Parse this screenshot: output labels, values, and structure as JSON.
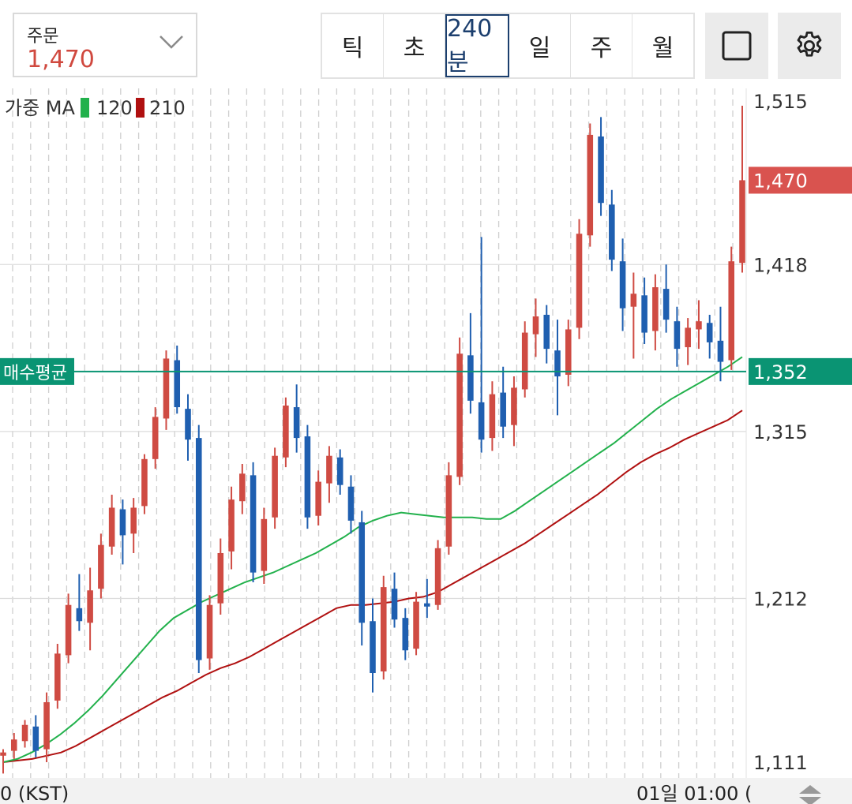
{
  "order": {
    "label": "주문",
    "value": "1,470"
  },
  "periods": [
    {
      "label": "틱",
      "active": false
    },
    {
      "label": "초",
      "active": false
    },
    {
      "label": "240분",
      "active": true
    },
    {
      "label": "일",
      "active": false
    },
    {
      "label": "주",
      "active": false
    },
    {
      "label": "월",
      "active": false
    }
  ],
  "icons": {
    "layout": "square-icon",
    "settings": "gear-icon",
    "scroll": "up-down-arrows-icon"
  },
  "legend": {
    "title": "가중 MA",
    "ma120_label": "120",
    "ma210_label": "210"
  },
  "colors": {
    "up": "#cf4b43",
    "down": "#1f5fb0",
    "ma120": "#22b14c",
    "ma210": "#b01010",
    "avg_line": "#0a9473",
    "current_price": "#d9534f"
  },
  "time_axis": {
    "left_label": "0 (KST)",
    "right_label": "01일 01:00 ("
  },
  "chart_data": {
    "type": "candlestick",
    "y_ticks": [
      1111,
      1212,
      1315,
      1418,
      1515
    ],
    "y_tick_labels": [
      "1,111",
      "1,212",
      "1,315",
      "1,418",
      "1,515"
    ],
    "ylim": [
      1111,
      1515
    ],
    "grid": true,
    "current_price": {
      "label": "1,470",
      "value": 1470
    },
    "avg_buy_price": {
      "tag": "매수평균",
      "label": "1,352",
      "value": 1352
    },
    "ma120": [
      1111,
      1113,
      1117,
      1122,
      1128,
      1135,
      1143,
      1152,
      1162,
      1172,
      1182,
      1192,
      1200,
      1205,
      1210,
      1214,
      1218,
      1222,
      1225,
      1228,
      1232,
      1236,
      1240,
      1245,
      1250,
      1256,
      1260,
      1263,
      1265,
      1264,
      1263,
      1262,
      1262,
      1262,
      1261,
      1261,
      1266,
      1272,
      1278,
      1284,
      1290,
      1296,
      1302,
      1308,
      1315,
      1322,
      1329,
      1335,
      1340,
      1345,
      1350,
      1355,
      1361
    ],
    "ma210": [
      1111,
      1112,
      1113,
      1115,
      1117,
      1121,
      1126,
      1131,
      1136,
      1141,
      1146,
      1151,
      1155,
      1160,
      1165,
      1169,
      1172,
      1176,
      1181,
      1186,
      1191,
      1196,
      1201,
      1206,
      1208,
      1208,
      1209,
      1210,
      1212,
      1213,
      1216,
      1221,
      1226,
      1231,
      1236,
      1241,
      1246,
      1252,
      1258,
      1264,
      1270,
      1276,
      1283,
      1290,
      1296,
      1301,
      1305,
      1310,
      1314,
      1318,
      1322,
      1328
    ],
    "candles": [
      {
        "o": 1115,
        "h": 1119,
        "l": 1104,
        "c": 1117
      },
      {
        "o": 1118,
        "h": 1129,
        "l": 1113,
        "c": 1125
      },
      {
        "o": 1124,
        "h": 1137,
        "l": 1120,
        "c": 1134
      },
      {
        "o": 1133,
        "h": 1140,
        "l": 1114,
        "c": 1118
      },
      {
        "o": 1119,
        "h": 1154,
        "l": 1111,
        "c": 1148
      },
      {
        "o": 1149,
        "h": 1184,
        "l": 1144,
        "c": 1178
      },
      {
        "o": 1177,
        "h": 1215,
        "l": 1172,
        "c": 1208
      },
      {
        "o": 1206,
        "h": 1227,
        "l": 1192,
        "c": 1198
      },
      {
        "o": 1197,
        "h": 1231,
        "l": 1180,
        "c": 1217
      },
      {
        "o": 1218,
        "h": 1252,
        "l": 1212,
        "c": 1245
      },
      {
        "o": 1244,
        "h": 1276,
        "l": 1239,
        "c": 1268
      },
      {
        "o": 1267,
        "h": 1273,
        "l": 1233,
        "c": 1251
      },
      {
        "o": 1252,
        "h": 1274,
        "l": 1240,
        "c": 1268
      },
      {
        "o": 1269,
        "h": 1301,
        "l": 1264,
        "c": 1298
      },
      {
        "o": 1298,
        "h": 1330,
        "l": 1292,
        "c": 1324
      },
      {
        "o": 1323,
        "h": 1365,
        "l": 1316,
        "c": 1360
      },
      {
        "o": 1359,
        "h": 1368,
        "l": 1326,
        "c": 1330
      },
      {
        "o": 1329,
        "h": 1338,
        "l": 1297,
        "c": 1310
      },
      {
        "o": 1311,
        "h": 1319,
        "l": 1166,
        "c": 1174
      },
      {
        "o": 1175,
        "h": 1214,
        "l": 1168,
        "c": 1208
      },
      {
        "o": 1209,
        "h": 1249,
        "l": 1202,
        "c": 1240
      },
      {
        "o": 1241,
        "h": 1281,
        "l": 1230,
        "c": 1273
      },
      {
        "o": 1272,
        "h": 1295,
        "l": 1264,
        "c": 1289
      },
      {
        "o": 1288,
        "h": 1296,
        "l": 1222,
        "c": 1228
      },
      {
        "o": 1229,
        "h": 1268,
        "l": 1221,
        "c": 1261
      },
      {
        "o": 1262,
        "h": 1305,
        "l": 1255,
        "c": 1300
      },
      {
        "o": 1299,
        "h": 1336,
        "l": 1293,
        "c": 1331
      },
      {
        "o": 1330,
        "h": 1344,
        "l": 1302,
        "c": 1311
      },
      {
        "o": 1312,
        "h": 1319,
        "l": 1255,
        "c": 1262
      },
      {
        "o": 1263,
        "h": 1291,
        "l": 1257,
        "c": 1284
      },
      {
        "o": 1283,
        "h": 1306,
        "l": 1271,
        "c": 1300
      },
      {
        "o": 1299,
        "h": 1304,
        "l": 1276,
        "c": 1282
      },
      {
        "o": 1281,
        "h": 1288,
        "l": 1252,
        "c": 1260
      },
      {
        "o": 1259,
        "h": 1266,
        "l": 1183,
        "c": 1197
      },
      {
        "o": 1198,
        "h": 1212,
        "l": 1154,
        "c": 1166
      },
      {
        "o": 1167,
        "h": 1226,
        "l": 1162,
        "c": 1219
      },
      {
        "o": 1218,
        "h": 1228,
        "l": 1194,
        "c": 1199
      },
      {
        "o": 1200,
        "h": 1206,
        "l": 1174,
        "c": 1180
      },
      {
        "o": 1181,
        "h": 1216,
        "l": 1177,
        "c": 1210
      },
      {
        "o": 1209,
        "h": 1224,
        "l": 1200,
        "c": 1207
      },
      {
        "o": 1208,
        "h": 1248,
        "l": 1205,
        "c": 1243
      },
      {
        "o": 1244,
        "h": 1296,
        "l": 1239,
        "c": 1288
      },
      {
        "o": 1287,
        "h": 1373,
        "l": 1282,
        "c": 1363
      },
      {
        "o": 1362,
        "h": 1388,
        "l": 1326,
        "c": 1334
      },
      {
        "o": 1333,
        "h": 1435,
        "l": 1302,
        "c": 1310
      },
      {
        "o": 1311,
        "h": 1346,
        "l": 1303,
        "c": 1338
      },
      {
        "o": 1339,
        "h": 1355,
        "l": 1311,
        "c": 1318
      },
      {
        "o": 1319,
        "h": 1349,
        "l": 1306,
        "c": 1342
      },
      {
        "o": 1341,
        "h": 1383,
        "l": 1336,
        "c": 1376
      },
      {
        "o": 1375,
        "h": 1397,
        "l": 1361,
        "c": 1386
      },
      {
        "o": 1387,
        "h": 1393,
        "l": 1357,
        "c": 1366
      },
      {
        "o": 1365,
        "h": 1384,
        "l": 1325,
        "c": 1349
      },
      {
        "o": 1350,
        "h": 1384,
        "l": 1343,
        "c": 1378
      },
      {
        "o": 1379,
        "h": 1446,
        "l": 1372,
        "c": 1437
      },
      {
        "o": 1436,
        "h": 1505,
        "l": 1429,
        "c": 1498
      },
      {
        "o": 1497,
        "h": 1509,
        "l": 1448,
        "c": 1456
      },
      {
        "o": 1455,
        "h": 1464,
        "l": 1414,
        "c": 1421
      },
      {
        "o": 1420,
        "h": 1434,
        "l": 1377,
        "c": 1391
      },
      {
        "o": 1392,
        "h": 1413,
        "l": 1360,
        "c": 1400
      },
      {
        "o": 1399,
        "h": 1410,
        "l": 1369,
        "c": 1376
      },
      {
        "o": 1377,
        "h": 1412,
        "l": 1365,
        "c": 1404
      },
      {
        "o": 1403,
        "h": 1418,
        "l": 1376,
        "c": 1384
      },
      {
        "o": 1383,
        "h": 1392,
        "l": 1355,
        "c": 1366
      },
      {
        "o": 1367,
        "h": 1385,
        "l": 1356,
        "c": 1379
      },
      {
        "o": 1378,
        "h": 1396,
        "l": 1366,
        "c": 1383
      },
      {
        "o": 1382,
        "h": 1387,
        "l": 1360,
        "c": 1370
      },
      {
        "o": 1371,
        "h": 1392,
        "l": 1346,
        "c": 1358
      },
      {
        "o": 1359,
        "h": 1429,
        "l": 1353,
        "c": 1420
      },
      {
        "o": 1419,
        "h": 1516,
        "l": 1413,
        "c": 1470
      }
    ]
  }
}
